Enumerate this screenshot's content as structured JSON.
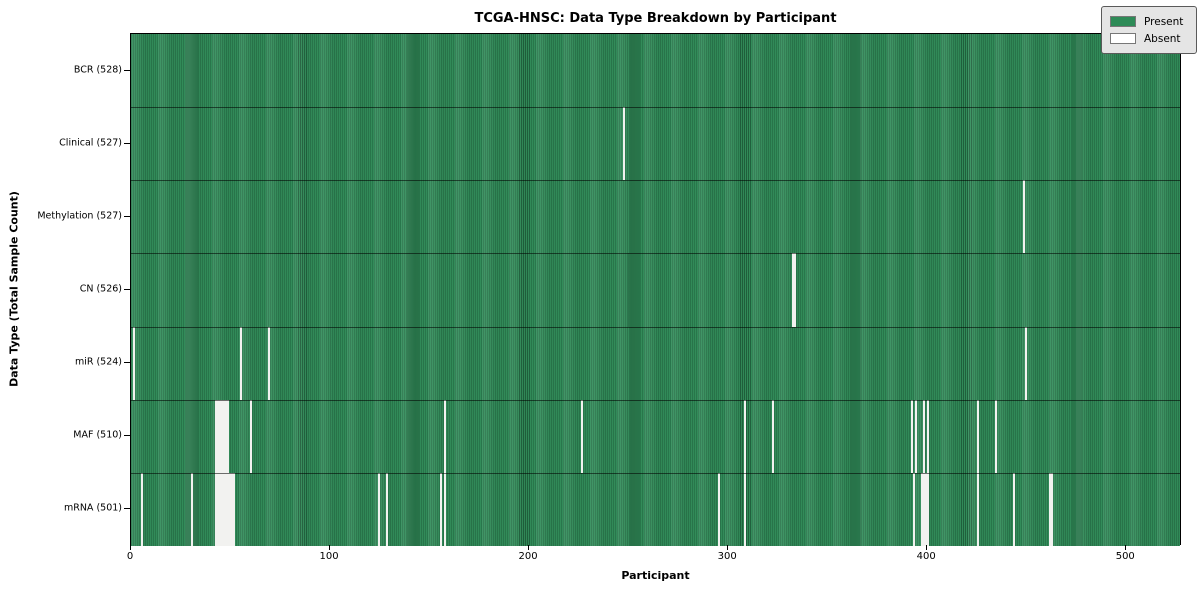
{
  "title": "TCGA-HNSC: Data Type Breakdown by Participant",
  "chart_data": {
    "type": "heatmap",
    "title": "TCGA-HNSC: Data Type Breakdown by Participant",
    "xlabel": "Participant",
    "ylabel": "Data Type (Total Sample Count)",
    "x_ticks": [
      0,
      100,
      200,
      300,
      400,
      500
    ],
    "x_range": [
      0,
      528
    ],
    "total_participants": 528,
    "grid": false,
    "legend_position": "upper right",
    "legend": [
      {
        "label": "Present",
        "color": "#2e8b57"
      },
      {
        "label": "Absent",
        "color": "#ffffff"
      }
    ],
    "colors": {
      "present": "#2e8b57",
      "absent": "#f2f2f0",
      "cell_edge": "rgba(0,0,0,0.30)",
      "row_separator": "rgba(0,0,0,0.55)",
      "plot_border": "#000000",
      "legend_bg": "#e5e5e5"
    },
    "rows": [
      {
        "label": "BCR (528)",
        "name": "BCR",
        "present_count": 528,
        "absent_participants": []
      },
      {
        "label": "Clinical (527)",
        "name": "Clinical",
        "present_count": 527,
        "absent_participants": [
          247
        ]
      },
      {
        "label": "Methylation (527)",
        "name": "Methylation",
        "present_count": 527,
        "absent_participants": [
          448
        ]
      },
      {
        "label": "CN (526)",
        "name": "CN",
        "present_count": 526,
        "absent_participants": [
          332,
          333
        ]
      },
      {
        "label": "miR (524)",
        "name": "miR",
        "present_count": 524,
        "absent_participants": [
          1,
          55,
          69,
          449
        ]
      },
      {
        "label": "MAF (510)",
        "name": "MAF",
        "present_count": 510,
        "absent_participants": [
          42,
          43,
          44,
          45,
          46,
          47,
          48,
          60,
          157,
          226,
          308,
          322,
          392,
          394,
          398,
          400,
          425,
          434
        ]
      },
      {
        "label": "mRNA (501)",
        "name": "mRNA",
        "present_count": 501,
        "absent_participants": [
          5,
          30,
          42,
          43,
          44,
          45,
          46,
          47,
          48,
          49,
          50,
          51,
          124,
          128,
          155,
          157,
          295,
          308,
          393,
          397,
          398,
          399,
          400,
          425,
          443,
          461,
          462
        ]
      }
    ]
  }
}
